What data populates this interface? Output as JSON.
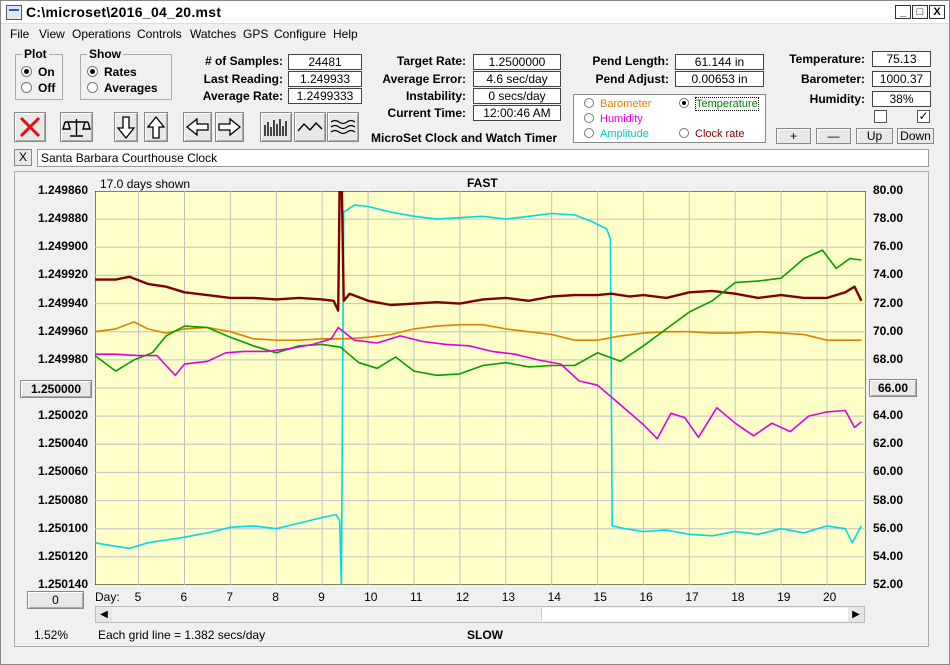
{
  "window": {
    "title": "C:\\microset\\2016_04_20.mst",
    "minimize": "_",
    "maximize": "□",
    "close": "X"
  },
  "menu": [
    "File",
    "View",
    "Operations",
    "Controls",
    "Watches",
    "GPS",
    "Configure",
    "Help"
  ],
  "plot_group": {
    "title": "Plot",
    "on": "On",
    "off": "Off",
    "selected": "On"
  },
  "show_group": {
    "title": "Show",
    "rates": "Rates",
    "averages": "Averages",
    "selected": "Rates"
  },
  "stats": {
    "samples_label": "# of Samples:",
    "samples": "24481",
    "last_label": "Last Reading:",
    "last": "1.249933",
    "avg_rate_label": "Average Rate:",
    "avg_rate": "1.2499333",
    "target_label": "Target Rate:",
    "target": "1.2500000",
    "avg_error_label": "Average Error:",
    "avg_error": "4.6 sec/day",
    "instability_label": "Instability:",
    "instability": "0 secs/day",
    "time_label": "Current Time:",
    "time": "12:00:46 AM",
    "pend_length_label": "Pend Length:",
    "pend_length": "61.144 in",
    "pend_adjust_label": "Pend Adjust:",
    "pend_adjust": "0.00653 in",
    "temperature_label": "Temperature:",
    "temperature": "75.13",
    "barometer_label": "Barometer:",
    "barometer": "1000.37",
    "humidity_label": "Humidity:",
    "humidity": "38%"
  },
  "app_name": "MicroSet Clock and Watch Timer",
  "sensor_select": {
    "barometer": "Barometer",
    "temperature": "Temperature",
    "humidity": "Humidity",
    "amplitude": "Amplitude",
    "clock_rate": "Clock rate",
    "selected": "Temperature",
    "colors": {
      "barometer": "#e08000",
      "temperature": "#008000",
      "humidity": "#e000e0",
      "amplitude": "#00c8c8",
      "clock_rate": "#800000"
    }
  },
  "adjust_buttons": {
    "plus": "+",
    "minus": "—",
    "up": "Up",
    "down": "Down"
  },
  "checkboxes": {
    "left": false,
    "right": true,
    "right_mark": "✓"
  },
  "clock_name": "Santa Barbara Courthouse Clock",
  "clear_label": "X",
  "toolbar_icons": [
    "cancel-icon",
    "balance-scale-icon",
    "arrow-down-icon",
    "arrow-up-icon",
    "arrow-left-icon",
    "arrow-right-icon",
    "bar-chart-icon",
    "wave-icon",
    "multi-wave-icon"
  ],
  "chart_header": {
    "days_shown": "17.0 days shown",
    "top": "FAST",
    "bottom": "SLOW"
  },
  "chart_footer": {
    "scale_pct": "1.52%",
    "grid_note": "Each grid line = 1.382 secs/day",
    "day_label": "Day:"
  },
  "left_center_button": "1.250000",
  "left_bottom_button": "0",
  "right_center_button": "66.00",
  "colors": {
    "plot_bg": "#ffffc8",
    "grid": "#c0c0c0"
  },
  "chart_data": {
    "type": "line",
    "x_label": "Day:",
    "x_range": [
      4.05,
      20.85
    ],
    "x_ticks": [
      5,
      6,
      7,
      8,
      9,
      10,
      11,
      12,
      13,
      14,
      15,
      16,
      17,
      18,
      19,
      20
    ],
    "y_left": {
      "reversed": true,
      "range": [
        1.24986,
        1.25014
      ],
      "ticks": [
        "1.249860",
        "1.249880",
        "1.249900",
        "1.249920",
        "1.249940",
        "1.249960",
        "1.249980",
        "1.250000",
        "1.250020",
        "1.250040",
        "1.250060",
        "1.250080",
        "1.250100",
        "1.250120",
        "1.250140"
      ]
    },
    "y_right": {
      "range": [
        52,
        80
      ],
      "ticks": [
        "80.00",
        "78.00",
        "76.00",
        "74.00",
        "72.00",
        "70.00",
        "68.00",
        "66.00",
        "64.00",
        "62.00",
        "60.00",
        "58.00",
        "56.00",
        "54.00",
        "52.00"
      ]
    },
    "grid": true,
    "series": [
      {
        "name": "Amplitude",
        "color": "#00d8e8",
        "axis": "right",
        "points": [
          [
            4.05,
            55.0
          ],
          [
            4.4,
            54.8
          ],
          [
            4.8,
            54.6
          ],
          [
            5.2,
            55.0
          ],
          [
            5.6,
            55.2
          ],
          [
            6.0,
            55.4
          ],
          [
            6.5,
            55.7
          ],
          [
            7.0,
            56.1
          ],
          [
            7.5,
            56.2
          ],
          [
            8.0,
            56.0
          ],
          [
            8.5,
            56.4
          ],
          [
            9.0,
            56.8
          ],
          [
            9.3,
            57.0
          ],
          [
            9.38,
            56.6
          ],
          [
            9.42,
            52.0
          ],
          [
            9.47,
            78.5
          ],
          [
            9.7,
            79.0
          ],
          [
            10.0,
            78.9
          ],
          [
            10.5,
            78.5
          ],
          [
            11.0,
            78.2
          ],
          [
            11.5,
            78.0
          ],
          [
            12.0,
            78.1
          ],
          [
            12.5,
            78.2
          ],
          [
            13.0,
            78.0
          ],
          [
            13.5,
            78.2
          ],
          [
            14.0,
            78.4
          ],
          [
            14.5,
            78.3
          ],
          [
            14.9,
            77.8
          ],
          [
            15.2,
            77.3
          ],
          [
            15.28,
            76.6
          ],
          [
            15.32,
            56.2
          ],
          [
            15.6,
            56.0
          ],
          [
            16.0,
            55.8
          ],
          [
            16.5,
            55.9
          ],
          [
            17.0,
            55.6
          ],
          [
            17.5,
            55.5
          ],
          [
            18.0,
            55.8
          ],
          [
            18.5,
            55.6
          ],
          [
            19.0,
            56.0
          ],
          [
            19.5,
            55.7
          ],
          [
            20.0,
            56.2
          ],
          [
            20.4,
            56.0
          ],
          [
            20.55,
            55.0
          ],
          [
            20.75,
            56.2
          ]
        ]
      },
      {
        "name": "Clock rate",
        "color": "#800000",
        "axis": "left",
        "points": [
          [
            4.05,
            1.249923
          ],
          [
            4.5,
            1.249923
          ],
          [
            4.8,
            1.249921
          ],
          [
            5.2,
            1.249926
          ],
          [
            5.6,
            1.249928
          ],
          [
            6.0,
            1.249932
          ],
          [
            6.5,
            1.249934
          ],
          [
            7.0,
            1.249936
          ],
          [
            7.5,
            1.249936
          ],
          [
            8.0,
            1.249937
          ],
          [
            8.5,
            1.249936
          ],
          [
            9.0,
            1.249937
          ],
          [
            9.25,
            1.249938
          ],
          [
            9.35,
            1.249945
          ],
          [
            9.38,
            1.24986
          ],
          [
            9.43,
            1.24986
          ],
          [
            9.47,
            1.249938
          ],
          [
            9.6,
            1.249933
          ],
          [
            10.0,
            1.249938
          ],
          [
            10.5,
            1.249941
          ],
          [
            11.0,
            1.24994
          ],
          [
            11.5,
            1.249939
          ],
          [
            12.0,
            1.24994
          ],
          [
            12.5,
            1.249937
          ],
          [
            13.0,
            1.249936
          ],
          [
            13.5,
            1.249938
          ],
          [
            14.0,
            1.249935
          ],
          [
            14.5,
            1.249934
          ],
          [
            15.0,
            1.249934
          ],
          [
            15.3,
            1.249933
          ],
          [
            15.7,
            1.249935
          ],
          [
            16.0,
            1.249934
          ],
          [
            16.5,
            1.249936
          ],
          [
            17.0,
            1.249932
          ],
          [
            17.5,
            1.249931
          ],
          [
            18.0,
            1.249933
          ],
          [
            18.5,
            1.249936
          ],
          [
            19.0,
            1.249934
          ],
          [
            19.5,
            1.249936
          ],
          [
            20.0,
            1.249936
          ],
          [
            20.4,
            1.249932
          ],
          [
            20.6,
            1.249928
          ],
          [
            20.75,
            1.249938
          ]
        ]
      },
      {
        "name": "Barometer",
        "color": "#e08000",
        "axis": "left",
        "points": [
          [
            4.05,
            1.24996
          ],
          [
            4.5,
            1.249958
          ],
          [
            4.9,
            1.249953
          ],
          [
            5.2,
            1.249958
          ],
          [
            5.6,
            1.249961
          ],
          [
            6.0,
            1.249958
          ],
          [
            6.5,
            1.249957
          ],
          [
            7.0,
            1.24996
          ],
          [
            7.5,
            1.249965
          ],
          [
            8.0,
            1.249966
          ],
          [
            8.5,
            1.249966
          ],
          [
            9.0,
            1.249965
          ],
          [
            9.5,
            1.249965
          ],
          [
            10.0,
            1.249964
          ],
          [
            10.5,
            1.249962
          ],
          [
            11.0,
            1.249958
          ],
          [
            11.5,
            1.249956
          ],
          [
            12.0,
            1.249955
          ],
          [
            12.5,
            1.249955
          ],
          [
            13.0,
            1.249958
          ],
          [
            13.5,
            1.24996
          ],
          [
            14.0,
            1.249962
          ],
          [
            14.5,
            1.249966
          ],
          [
            15.0,
            1.249966
          ],
          [
            15.5,
            1.249963
          ],
          [
            16.0,
            1.249961
          ],
          [
            16.5,
            1.24996
          ],
          [
            17.0,
            1.24996
          ],
          [
            17.5,
            1.249961
          ],
          [
            18.0,
            1.249961
          ],
          [
            18.5,
            1.24996
          ],
          [
            19.0,
            1.249961
          ],
          [
            19.5,
            1.249962
          ],
          [
            20.0,
            1.249966
          ],
          [
            20.5,
            1.249966
          ],
          [
            20.75,
            1.249966
          ]
        ]
      },
      {
        "name": "Temperature",
        "color": "#00a000",
        "axis": "right",
        "points": [
          [
            4.05,
            68.3
          ],
          [
            4.5,
            67.2
          ],
          [
            4.9,
            68.0
          ],
          [
            5.3,
            68.5
          ],
          [
            5.6,
            69.7
          ],
          [
            6.0,
            70.4
          ],
          [
            6.5,
            70.3
          ],
          [
            7.0,
            69.6
          ],
          [
            7.5,
            69.0
          ],
          [
            8.0,
            68.5
          ],
          [
            8.5,
            69.0
          ],
          [
            9.0,
            69.1
          ],
          [
            9.4,
            68.9
          ],
          [
            9.8,
            67.8
          ],
          [
            10.2,
            67.4
          ],
          [
            10.6,
            68.2
          ],
          [
            11.0,
            67.2
          ],
          [
            11.5,
            66.9
          ],
          [
            12.0,
            67.0
          ],
          [
            12.5,
            67.6
          ],
          [
            13.0,
            67.8
          ],
          [
            13.5,
            67.5
          ],
          [
            14.0,
            67.6
          ],
          [
            14.5,
            67.6
          ],
          [
            15.0,
            68.5
          ],
          [
            15.5,
            67.9
          ],
          [
            16.0,
            69.0
          ],
          [
            16.5,
            70.2
          ],
          [
            17.0,
            71.4
          ],
          [
            17.5,
            72.2
          ],
          [
            18.0,
            73.5
          ],
          [
            18.5,
            73.6
          ],
          [
            19.0,
            73.8
          ],
          [
            19.5,
            75.2
          ],
          [
            19.9,
            75.8
          ],
          [
            20.2,
            74.5
          ],
          [
            20.5,
            75.2
          ],
          [
            20.75,
            75.1
          ]
        ]
      },
      {
        "name": "Humidity",
        "color": "#e000e0",
        "axis": "right",
        "points": [
          [
            4.05,
            68.4
          ],
          [
            4.5,
            68.4
          ],
          [
            5.0,
            68.3
          ],
          [
            5.4,
            68.3
          ],
          [
            5.6,
            67.6
          ],
          [
            5.8,
            66.9
          ],
          [
            6.0,
            67.7
          ],
          [
            6.5,
            67.9
          ],
          [
            6.9,
            68.5
          ],
          [
            7.3,
            68.6
          ],
          [
            7.8,
            68.6
          ],
          [
            8.3,
            68.8
          ],
          [
            8.8,
            69.1
          ],
          [
            9.2,
            69.5
          ],
          [
            9.35,
            70.3
          ],
          [
            9.7,
            69.4
          ],
          [
            10.2,
            69.2
          ],
          [
            10.7,
            69.7
          ],
          [
            11.2,
            69.3
          ],
          [
            11.7,
            69.1
          ],
          [
            12.2,
            69.0
          ],
          [
            12.7,
            68.6
          ],
          [
            13.2,
            68.4
          ],
          [
            13.7,
            68.0
          ],
          [
            14.2,
            67.7
          ],
          [
            14.6,
            66.5
          ],
          [
            15.0,
            66.2
          ],
          [
            15.5,
            64.8
          ],
          [
            16.0,
            63.4
          ],
          [
            16.3,
            62.4
          ],
          [
            16.6,
            64.2
          ],
          [
            16.9,
            63.9
          ],
          [
            17.2,
            62.5
          ],
          [
            17.6,
            64.6
          ],
          [
            18.0,
            63.5
          ],
          [
            18.4,
            62.6
          ],
          [
            18.8,
            63.5
          ],
          [
            19.2,
            62.9
          ],
          [
            19.6,
            64.0
          ],
          [
            20.0,
            64.3
          ],
          [
            20.4,
            64.4
          ],
          [
            20.6,
            63.2
          ],
          [
            20.75,
            63.6
          ]
        ]
      }
    ]
  }
}
